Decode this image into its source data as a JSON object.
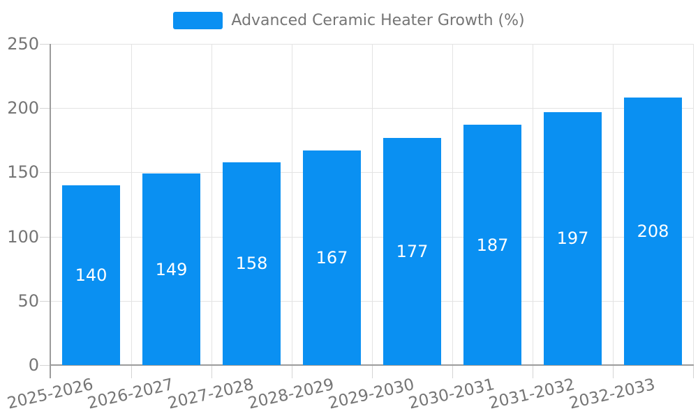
{
  "legend": {
    "label": "Advanced Ceramic Heater Growth (%)",
    "position": "top-center"
  },
  "chart_data": {
    "type": "bar",
    "title": "",
    "xlabel": "",
    "ylabel": "",
    "categories": [
      "2025-2026",
      "2026-2027",
      "2027-2028",
      "2028-2029",
      "2029-2030",
      "2030-2031",
      "2031-2032",
      "2032-2033"
    ],
    "series": [
      {
        "name": "Advanced Ceramic Heater Growth (%)",
        "values": [
          140,
          149,
          158,
          167,
          177,
          187,
          197,
          208
        ]
      }
    ],
    "ylim": [
      0,
      250
    ],
    "y_ticks": [
      0,
      50,
      100,
      150,
      200,
      250
    ],
    "grid": true,
    "legend_position": "top-center",
    "value_labels": {
      "position": "inside-center",
      "color": "#ffffff"
    }
  },
  "colors": {
    "bar": "#0a90f2",
    "grid_line": "#e3e3e3",
    "tick_mark": "#d4d4d4",
    "axis_line": "#9b9b9b",
    "axis_text": "#757575",
    "legend_text": "#757575",
    "value_text": "#ffffff",
    "background": "#ffffff"
  }
}
